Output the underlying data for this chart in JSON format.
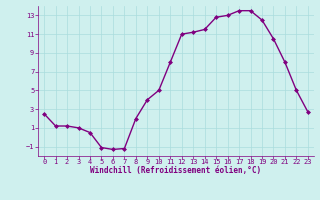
{
  "x": [
    0,
    1,
    2,
    3,
    4,
    5,
    6,
    7,
    8,
    9,
    10,
    11,
    12,
    13,
    14,
    15,
    16,
    17,
    18,
    19,
    20,
    21,
    22,
    23
  ],
  "y": [
    2.5,
    1.2,
    1.2,
    1.0,
    0.5,
    -1.1,
    -1.3,
    -1.2,
    2.0,
    4.0,
    5.0,
    8.0,
    11.0,
    11.2,
    11.5,
    12.8,
    13.0,
    13.5,
    13.5,
    12.5,
    10.5,
    8.0,
    5.0,
    2.7
  ],
  "line_color": "#800080",
  "marker": "D",
  "markersize": 2,
  "linewidth": 1.0,
  "xlabel": "Windchill (Refroidissement éolien,°C)",
  "xlim": [
    -0.5,
    23.5
  ],
  "ylim": [
    -2,
    14
  ],
  "yticks": [
    -1,
    1,
    3,
    5,
    7,
    9,
    11,
    13
  ],
  "xticks": [
    0,
    1,
    2,
    3,
    4,
    5,
    6,
    7,
    8,
    9,
    10,
    11,
    12,
    13,
    14,
    15,
    16,
    17,
    18,
    19,
    20,
    21,
    22,
    23
  ],
  "bg_color": "#cff0ee",
  "grid_color": "#aadddd",
  "tick_color": "#800080",
  "label_color": "#800080",
  "font_family": "monospace",
  "tick_fontsize": 5,
  "xlabel_fontsize": 5.5
}
